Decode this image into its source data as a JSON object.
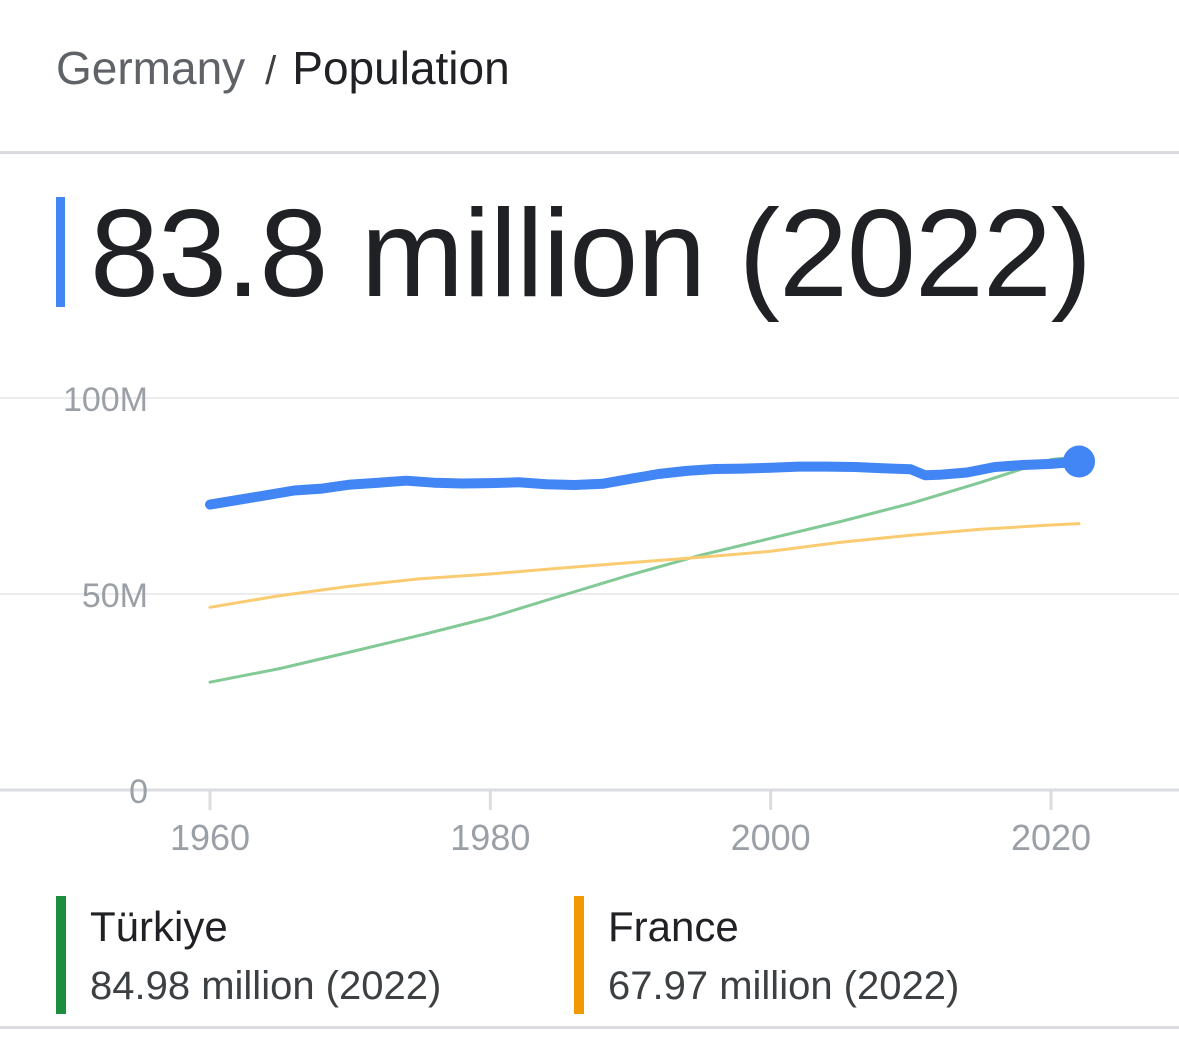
{
  "breadcrumb": {
    "parent": "Germany",
    "separator": "/",
    "current": "Population"
  },
  "headline": {
    "value": "83.8 million (2022)",
    "accent_color": "#4285f4"
  },
  "legend": [
    {
      "name": "Türkiye",
      "value": "84.98 million (2022)",
      "color": "#1e8e3e"
    },
    {
      "name": "France",
      "value": "67.97 million (2022)",
      "color": "#f29900"
    }
  ],
  "chart_data": {
    "type": "line",
    "y_ticks": [
      {
        "value": 0,
        "label": "0"
      },
      {
        "value": 50,
        "label": "50M"
      },
      {
        "value": 100,
        "label": "100M"
      }
    ],
    "x_ticks": [
      {
        "value": 1960,
        "label": "1960"
      },
      {
        "value": 1980,
        "label": "1980"
      },
      {
        "value": 2000,
        "label": "2000"
      },
      {
        "value": 2020,
        "label": "2020"
      }
    ],
    "xlim": [
      1946,
      2031
    ],
    "ylim": [
      0,
      100
    ],
    "grid": true,
    "series": [
      {
        "name": "Türkiye",
        "color": "#81c995",
        "emphasis": false,
        "x": [
          1960,
          1965,
          1970,
          1975,
          1980,
          1985,
          1990,
          1995,
          2000,
          2005,
          2010,
          2015,
          2020,
          2022
        ],
        "values": [
          27.5,
          31.0,
          35.2,
          39.5,
          44.0,
          49.5,
          54.9,
          59.9,
          64.2,
          68.5,
          73.1,
          78.5,
          84.3,
          84.98
        ]
      },
      {
        "name": "France",
        "color": "#fbcb72",
        "emphasis": false,
        "x": [
          1960,
          1965,
          1970,
          1975,
          1980,
          1985,
          1990,
          1995,
          2000,
          2005,
          2010,
          2015,
          2020,
          2022
        ],
        "values": [
          46.6,
          49.6,
          52.0,
          53.9,
          55.1,
          56.6,
          58.0,
          59.4,
          60.9,
          63.2,
          65.0,
          66.5,
          67.6,
          67.97
        ]
      },
      {
        "name": "Germany",
        "color": "#4285f4",
        "emphasis": true,
        "x": [
          1960,
          1963,
          1966,
          1968,
          1970,
          1972,
          1974,
          1976,
          1978,
          1980,
          1982,
          1984,
          1986,
          1988,
          1990,
          1992,
          1994,
          1996,
          1998,
          2000,
          2002,
          2004,
          2006,
          2008,
          2010,
          2011,
          2012,
          2014,
          2016,
          2018,
          2020,
          2022
        ],
        "values": [
          72.8,
          74.6,
          76.4,
          76.9,
          77.9,
          78.4,
          78.9,
          78.4,
          78.2,
          78.3,
          78.5,
          78.0,
          77.8,
          78.1,
          79.4,
          80.6,
          81.4,
          81.9,
          82.0,
          82.2,
          82.5,
          82.5,
          82.4,
          82.1,
          81.8,
          80.3,
          80.4,
          81.0,
          82.4,
          82.9,
          83.2,
          83.8
        ]
      }
    ]
  }
}
